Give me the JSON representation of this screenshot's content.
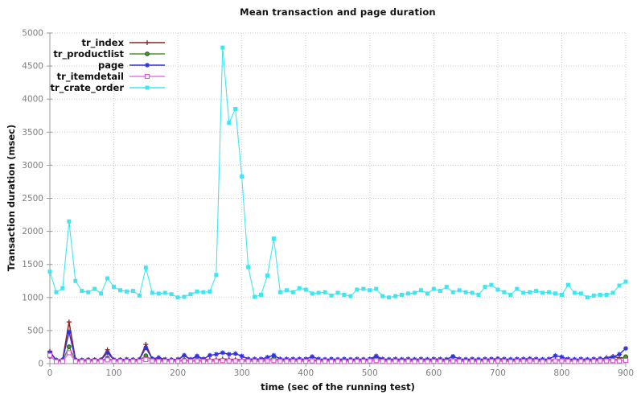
{
  "page": {
    "title": "Mean transaction and page duration"
  },
  "chart_data": {
    "type": "line",
    "title": "Mean transaction and page duration",
    "xlabel": "time (sec of the running test)",
    "ylabel": "Transaction duration (msec)",
    "xlim": [
      0,
      900
    ],
    "ylim": [
      0,
      5000
    ],
    "xtick_step": 100,
    "ytick_step": 500,
    "grid": true,
    "grid_style": "dotted",
    "legend_position": "top-left",
    "style": {
      "background": "#ffffff",
      "axis_color": "#9a9a9a",
      "grid_color": "#cccccc",
      "tick_label_color": "#7d7d7d",
      "text_color": "#111111"
    },
    "x": [
      0,
      10,
      20,
      30,
      40,
      50,
      60,
      70,
      80,
      90,
      100,
      110,
      120,
      130,
      140,
      150,
      160,
      170,
      180,
      190,
      200,
      210,
      220,
      230,
      240,
      250,
      260,
      270,
      280,
      290,
      300,
      310,
      320,
      330,
      340,
      350,
      360,
      370,
      380,
      390,
      400,
      410,
      420,
      430,
      440,
      450,
      460,
      470,
      480,
      490,
      500,
      510,
      520,
      530,
      540,
      550,
      560,
      570,
      580,
      590,
      600,
      610,
      620,
      630,
      640,
      650,
      660,
      670,
      680,
      690,
      700,
      710,
      720,
      730,
      740,
      750,
      760,
      770,
      780,
      790,
      800,
      810,
      820,
      830,
      840,
      850,
      860,
      870,
      880,
      890,
      900
    ],
    "series": [
      {
        "name": "tr_index",
        "color": "#8b2323",
        "marker": "plus",
        "marker_edge": "#8b2323",
        "values": [
          185,
          50,
          60,
          630,
          65,
          55,
          55,
          55,
          55,
          210,
          55,
          55,
          55,
          55,
          60,
          290,
          70,
          60,
          55,
          55,
          60,
          120,
          60,
          110,
          60,
          60,
          60,
          70,
          65,
          60,
          60,
          55,
          55,
          55,
          65,
          75,
          55,
          55,
          55,
          60,
          55,
          50,
          55,
          50,
          55,
          50,
          55,
          50,
          55,
          55,
          60,
          95,
          55,
          50,
          55,
          50,
          55,
          50,
          55,
          50,
          55,
          55,
          50,
          60,
          55,
          50,
          55,
          50,
          55,
          55,
          60,
          55,
          50,
          55,
          55,
          60,
          55,
          50,
          55,
          55,
          60,
          55,
          50,
          55,
          50,
          55,
          60,
          90,
          110,
          85,
          95
        ]
      },
      {
        "name": "tr_productlist",
        "color": "#4e9130",
        "marker": "circle",
        "marker_edge": "#27591a",
        "values": [
          110,
          40,
          45,
          255,
          45,
          40,
          45,
          45,
          45,
          85,
          45,
          45,
          45,
          45,
          45,
          120,
          50,
          45,
          45,
          45,
          45,
          55,
          45,
          55,
          45,
          45,
          50,
          55,
          50,
          50,
          45,
          45,
          45,
          45,
          50,
          85,
          45,
          45,
          45,
          50,
          45,
          40,
          45,
          40,
          45,
          40,
          45,
          40,
          45,
          45,
          50,
          80,
          45,
          40,
          45,
          40,
          45,
          40,
          45,
          40,
          45,
          45,
          40,
          50,
          45,
          40,
          45,
          40,
          45,
          45,
          50,
          45,
          40,
          45,
          45,
          50,
          45,
          40,
          45,
          45,
          55,
          45,
          40,
          45,
          40,
          45,
          50,
          60,
          70,
          60,
          105
        ]
      },
      {
        "name": "page",
        "color": "#3232dc",
        "marker": "asterisk",
        "marker_edge": "#3232dc",
        "values": [
          170,
          55,
          60,
          480,
          60,
          55,
          60,
          60,
          60,
          165,
          60,
          60,
          65,
          60,
          65,
          240,
          75,
          90,
          65,
          60,
          65,
          125,
          65,
          115,
          70,
          125,
          140,
          165,
          140,
          150,
          115,
          70,
          70,
          70,
          95,
          125,
          70,
          70,
          70,
          70,
          70,
          105,
          70,
          65,
          70,
          65,
          70,
          65,
          70,
          65,
          70,
          115,
          70,
          65,
          70,
          65,
          70,
          65,
          70,
          65,
          70,
          70,
          65,
          110,
          70,
          65,
          70,
          65,
          70,
          70,
          75,
          70,
          65,
          70,
          70,
          75,
          70,
          65,
          70,
          120,
          100,
          70,
          65,
          70,
          65,
          70,
          75,
          80,
          100,
          140,
          230
        ]
      },
      {
        "name": "tr_itemdetail",
        "color": "#f26ef2",
        "marker": "open-square",
        "marker_edge": "#e052e0",
        "values": [
          125,
          30,
          35,
          165,
          35,
          30,
          35,
          35,
          35,
          55,
          35,
          35,
          35,
          35,
          35,
          60,
          40,
          35,
          35,
          35,
          35,
          40,
          35,
          40,
          35,
          35,
          40,
          45,
          40,
          40,
          35,
          35,
          35,
          35,
          40,
          45,
          35,
          35,
          35,
          35,
          35,
          40,
          30,
          35,
          30,
          35,
          30,
          35,
          35,
          35,
          40,
          45,
          35,
          30,
          35,
          30,
          35,
          30,
          35,
          30,
          35,
          35,
          30,
          40,
          35,
          30,
          35,
          30,
          35,
          35,
          40,
          35,
          30,
          35,
          35,
          40,
          35,
          30,
          35,
          40,
          40,
          35,
          30,
          35,
          30,
          35,
          40,
          40,
          45,
          40,
          50
        ]
      },
      {
        "name": "tr_crate_order",
        "color": "#3fe6f0",
        "marker": "filled-square",
        "marker_edge": "#3fe6f0",
        "values": [
          1390,
          1080,
          1140,
          2150,
          1250,
          1100,
          1080,
          1130,
          1060,
          1290,
          1160,
          1110,
          1090,
          1100,
          1030,
          1450,
          1070,
          1060,
          1070,
          1050,
          1000,
          1010,
          1050,
          1090,
          1080,
          1090,
          1340,
          4780,
          3640,
          3850,
          2830,
          1460,
          1010,
          1040,
          1330,
          1890,
          1080,
          1110,
          1080,
          1140,
          1120,
          1060,
          1070,
          1080,
          1030,
          1070,
          1040,
          1020,
          1120,
          1130,
          1110,
          1130,
          1020,
          1000,
          1020,
          1040,
          1060,
          1070,
          1110,
          1060,
          1130,
          1100,
          1160,
          1080,
          1110,
          1080,
          1070,
          1040,
          1160,
          1190,
          1120,
          1080,
          1040,
          1130,
          1070,
          1080,
          1100,
          1070,
          1080,
          1060,
          1040,
          1190,
          1070,
          1060,
          1000,
          1030,
          1040,
          1040,
          1070,
          1180,
          1240
        ]
      }
    ]
  }
}
